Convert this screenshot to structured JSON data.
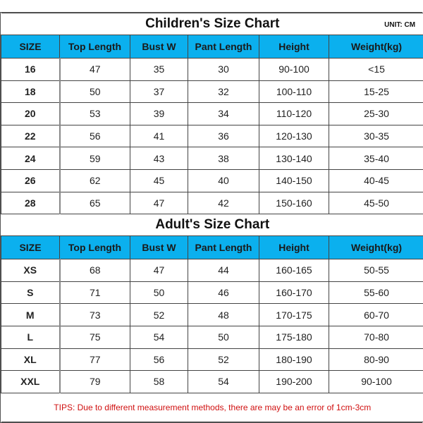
{
  "columns": [
    "SIZE",
    "Top Length",
    "Bust W",
    "Pant Length",
    "Height",
    "Weight(kg)"
  ],
  "children": {
    "title": "Children's Size Chart",
    "unit": "UNIT: CM",
    "rows": [
      [
        "16",
        "47",
        "35",
        "30",
        "90-100",
        "<15"
      ],
      [
        "18",
        "50",
        "37",
        "32",
        "100-110",
        "15-25"
      ],
      [
        "20",
        "53",
        "39",
        "34",
        "110-120",
        "25-30"
      ],
      [
        "22",
        "56",
        "41",
        "36",
        "120-130",
        "30-35"
      ],
      [
        "24",
        "59",
        "43",
        "38",
        "130-140",
        "35-40"
      ],
      [
        "26",
        "62",
        "45",
        "40",
        "140-150",
        "40-45"
      ],
      [
        "28",
        "65",
        "47",
        "42",
        "150-160",
        "45-50"
      ]
    ]
  },
  "adult": {
    "title": "Adult's Size Chart",
    "rows": [
      [
        "XS",
        "68",
        "47",
        "44",
        "160-165",
        "50-55"
      ],
      [
        "S",
        "71",
        "50",
        "46",
        "160-170",
        "55-60"
      ],
      [
        "M",
        "73",
        "52",
        "48",
        "170-175",
        "60-70"
      ],
      [
        "L",
        "75",
        "54",
        "50",
        "175-180",
        "70-80"
      ],
      [
        "XL",
        "77",
        "56",
        "52",
        "180-190",
        "80-90"
      ],
      [
        "XXL",
        "79",
        "58",
        "54",
        "190-200",
        "90-100"
      ]
    ]
  },
  "tips": "TIPS: Due to different measurement methods, there are may be an error of 1cm-3cm",
  "colors": {
    "header": "#0bb0ee",
    "tips": "#d01010"
  }
}
